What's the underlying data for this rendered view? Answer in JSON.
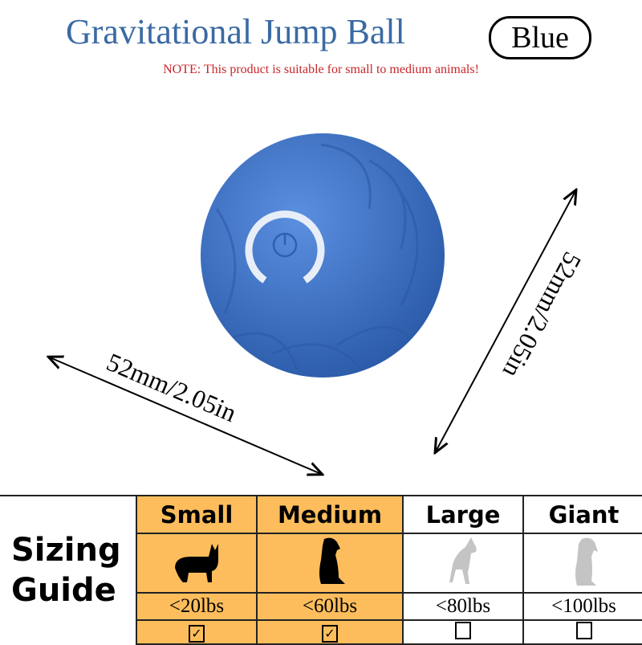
{
  "header": {
    "title": "Gravitational Jump Ball",
    "color_badge": "Blue",
    "note": "NOTE: This product is suitable for small to medium animals!"
  },
  "product": {
    "color": "#3d72c4",
    "icon": "power-icon"
  },
  "dimensions": {
    "width": "52mm/2.05in",
    "height": "52mm/2.05in"
  },
  "sizing": {
    "label_line1": "Sizing",
    "label_line2": "Guide",
    "highlight": "#fdbd5c",
    "sizes": [
      {
        "name": "Small",
        "weight": "<20lbs",
        "checked": true,
        "icon": "corgi-icon"
      },
      {
        "name": "Medium",
        "weight": "<60lbs",
        "checked": true,
        "icon": "sitting-dog-icon"
      },
      {
        "name": "Large",
        "weight": "<80lbs",
        "checked": false,
        "icon": "shepherd-dog-icon"
      },
      {
        "name": "Giant",
        "weight": "<100lbs",
        "checked": false,
        "icon": "large-dog-icon"
      }
    ]
  }
}
